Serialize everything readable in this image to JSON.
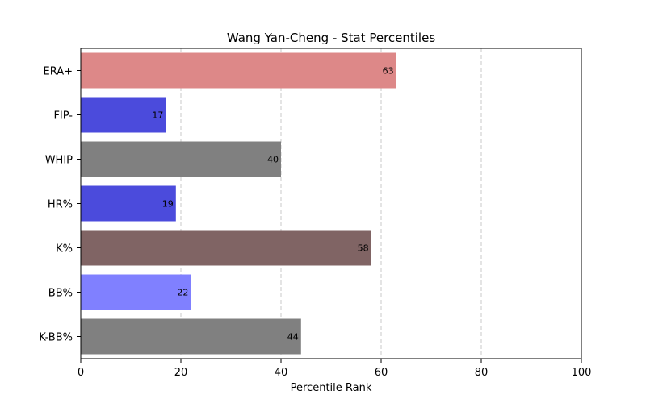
{
  "chart_data": {
    "type": "bar",
    "orientation": "horizontal",
    "title": "Wang Yan-Cheng - Stat Percentiles",
    "xlabel": "Percentile Rank",
    "ylabel": "",
    "xlim": [
      0,
      100
    ],
    "xticks": [
      0,
      20,
      40,
      60,
      80,
      100
    ],
    "grid": "x-axis dashed",
    "categories": [
      "ERA+",
      "FIP-",
      "WHIP",
      "HR%",
      "K%",
      "BB%",
      "K-BB%"
    ],
    "values": [
      63,
      17,
      40,
      19,
      58,
      22,
      44
    ],
    "colors": [
      "#dd8888",
      "#4b4bdc",
      "#808080",
      "#4b4bdc",
      "#806464",
      "#8080ff",
      "#808080"
    ]
  }
}
